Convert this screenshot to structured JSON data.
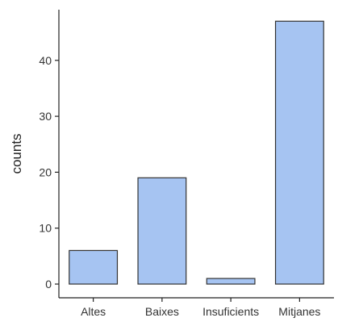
{
  "chart_data": {
    "type": "bar",
    "categories": [
      "Altes",
      "Baixes",
      "Insuficients",
      "Mitjanes"
    ],
    "values": [
      6,
      19,
      1,
      47
    ],
    "xlabel": "",
    "ylabel": "counts",
    "ylim": [
      0,
      49
    ],
    "yticks": [
      0,
      10,
      20,
      30,
      40
    ],
    "grid": false,
    "bar_color": "#a6c4f2",
    "bar_edge_color": "#333333"
  }
}
